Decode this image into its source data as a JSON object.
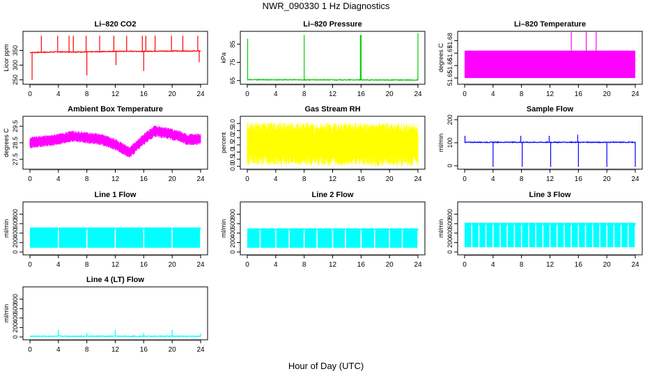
{
  "figure": {
    "title": "NWR_090330  1 Hz Diagnostics",
    "xlabel": "Hour of Day (UTC)"
  },
  "chart_data": [
    {
      "type": "line",
      "title": "Li–820 CO2",
      "xlabel": "",
      "ylabel": "Licor ppm",
      "xlim": [
        0,
        24
      ],
      "xticks": [
        0,
        4,
        8,
        12,
        16,
        20,
        24
      ],
      "ylim": [
        235,
        415
      ],
      "yticks": [
        250,
        300,
        350
      ],
      "ytick_labels": [
        "250",
        "300",
        "350"
      ],
      "color": "#ff0000",
      "grid": false,
      "baseline": [
        [
          0,
          343
        ],
        [
          4,
          345
        ],
        [
          8,
          345
        ],
        [
          12,
          347
        ],
        [
          16,
          347
        ],
        [
          20,
          348
        ],
        [
          24,
          348
        ]
      ],
      "spikes": [
        [
          0.3,
          250
        ],
        [
          1.6,
          400
        ],
        [
          3.9,
          400
        ],
        [
          5.5,
          400
        ],
        [
          6.1,
          400
        ],
        [
          7.9,
          400
        ],
        [
          8.0,
          265
        ],
        [
          9.8,
          400
        ],
        [
          11.8,
          400
        ],
        [
          12.1,
          300
        ],
        [
          13.6,
          400
        ],
        [
          15.8,
          400
        ],
        [
          16.0,
          280
        ],
        [
          16.3,
          400
        ],
        [
          17.6,
          400
        ],
        [
          19.9,
          400
        ],
        [
          21.5,
          400
        ],
        [
          23.6,
          400
        ],
        [
          23.8,
          310
        ]
      ]
    },
    {
      "type": "line",
      "title": "Li–820 Pressure",
      "xlabel": "",
      "ylabel": "kPa",
      "xlim": [
        0,
        24
      ],
      "xticks": [
        0,
        4,
        8,
        12,
        16,
        20,
        24
      ],
      "ylim": [
        63,
        92
      ],
      "yticks": [
        65,
        75,
        85
      ],
      "ytick_labels": [
        "65",
        "75",
        "85"
      ],
      "color": "#00cc00",
      "grid": false,
      "baseline": [
        [
          0,
          65.5
        ],
        [
          24,
          65.3
        ]
      ],
      "spikes": [
        [
          0.05,
          88
        ],
        [
          8.0,
          90
        ],
        [
          15.9,
          90
        ],
        [
          16.0,
          90
        ],
        [
          24.0,
          91
        ]
      ]
    },
    {
      "type": "line",
      "title": "Li–820 Temperature",
      "xlabel": "",
      "ylabel": "degrees C",
      "xlim": [
        0,
        24
      ],
      "xticks": [
        0,
        4,
        8,
        12,
        16,
        20,
        24
      ],
      "ylim": [
        51.645,
        51.6875
      ],
      "yticks": [
        51.65,
        51.66,
        51.67,
        51.68
      ],
      "ytick_labels": [
        "51.65",
        "51.66",
        "51.67",
        "51.68"
      ],
      "color": "#ff00ff",
      "grid": false,
      "band": [
        51.65,
        51.672
      ],
      "spikes": [
        [
          15.0,
          51.69
        ],
        [
          17.1,
          51.69
        ],
        [
          18.5,
          51.69
        ]
      ]
    },
    {
      "type": "line",
      "title": "Ambient Box Temperature",
      "xlabel": "",
      "ylabel": "degrees C",
      "xlim": [
        0,
        24
      ],
      "xticks": [
        0,
        4,
        8,
        12,
        16,
        20,
        24
      ],
      "ylim": [
        26.9,
        30.1
      ],
      "yticks": [
        27.5,
        28.5,
        29.5
      ],
      "ytick_labels": [
        "27.5",
        "28.5",
        "29.5"
      ],
      "color": "#ff00ff",
      "grid": false,
      "center": [
        [
          0,
          28.5
        ],
        [
          2,
          28.6
        ],
        [
          4,
          28.7
        ],
        [
          6,
          28.9
        ],
        [
          8,
          28.8
        ],
        [
          10,
          28.7
        ],
        [
          12,
          28.4
        ],
        [
          14,
          27.9
        ],
        [
          16,
          28.7
        ],
        [
          17.5,
          29.2
        ],
        [
          19,
          29.1
        ],
        [
          21,
          28.9
        ],
        [
          22,
          28.7
        ],
        [
          24,
          28.7
        ]
      ],
      "halfwidth": 0.35
    },
    {
      "type": "line",
      "title": "Gas Stream RH",
      "xlabel": "",
      "ylabel": "percent",
      "xlim": [
        0,
        24
      ],
      "xticks": [
        0,
        4,
        8,
        12,
        16,
        20,
        24
      ],
      "ylim": [
        -0.2,
        3.5
      ],
      "yticks": [
        0.0,
        0.5,
        1.0,
        1.5,
        2.0,
        2.5,
        3.0
      ],
      "ytick_labels": [
        "0.0",
        "0.5",
        "1.0",
        "1.5",
        "2.0",
        "2.5",
        "3.0"
      ],
      "color": "#ffff00",
      "grid": false,
      "center": [
        [
          0,
          1.6
        ],
        [
          24,
          1.5
        ]
      ],
      "halfwidth": 1.5
    },
    {
      "type": "line",
      "title": "Sample Flow",
      "xlabel": "",
      "ylabel": "ml/min",
      "xlim": [
        0,
        24
      ],
      "xticks": [
        0,
        4,
        8,
        12,
        16,
        20,
        24
      ],
      "ylim": [
        -15,
        215
      ],
      "yticks": [
        0,
        100,
        200
      ],
      "ytick_labels": [
        "0",
        "100",
        "200"
      ],
      "color": "#0000ff",
      "grid": false,
      "baseline": [
        [
          0,
          102
        ],
        [
          24,
          102
        ]
      ],
      "spikes": [
        [
          0.05,
          130
        ],
        [
          4.0,
          -5
        ],
        [
          7.9,
          130
        ],
        [
          8.1,
          -5
        ],
        [
          11.9,
          130
        ],
        [
          12.1,
          -5
        ],
        [
          15.9,
          135
        ],
        [
          16.0,
          -5
        ],
        [
          19.9,
          100
        ],
        [
          20.0,
          -5
        ],
        [
          24.0,
          -5
        ]
      ]
    },
    {
      "type": "area",
      "title": "Line 1 Flow",
      "xlabel": "",
      "ylabel": "ml/min",
      "xlim": [
        0,
        24
      ],
      "xticks": [
        0,
        4,
        8,
        12,
        16,
        20,
        24
      ],
      "ylim": [
        -60,
        1060
      ],
      "yticks": [
        0,
        200,
        400,
        600,
        800
      ],
      "ytick_labels": [
        "0",
        "200",
        "400",
        "600",
        "800"
      ],
      "color": "#00ffff",
      "grid": false,
      "band": [
        90,
        520
      ],
      "gaps": [
        4.0,
        8.0,
        12.0,
        16.0,
        20.0,
        24.0
      ]
    },
    {
      "type": "area",
      "title": "Line 2 Flow",
      "xlabel": "",
      "ylabel": "ml/min",
      "xlim": [
        0,
        24
      ],
      "xticks": [
        0,
        4,
        8,
        12,
        16,
        20,
        24
      ],
      "ylim": [
        -60,
        1060
      ],
      "yticks": [
        0,
        200,
        400,
        600,
        800
      ],
      "ytick_labels": [
        "0",
        "200",
        "400",
        "600",
        "800"
      ],
      "color": "#00ffff",
      "grid": false,
      "band": [
        90,
        500
      ],
      "gaps": [
        1.8,
        4.0,
        5.9,
        8.0,
        9.8,
        12.0,
        13.8,
        16.0,
        17.9,
        20.0,
        21.8,
        24.0
      ]
    },
    {
      "type": "area",
      "title": "Line 3 Flow",
      "xlabel": "",
      "ylabel": "ml/min",
      "xlim": [
        0,
        24
      ],
      "xticks": [
        0,
        4,
        8,
        12,
        16,
        20,
        24
      ],
      "ylim": [
        -60,
        1060
      ],
      "yticks": [
        0,
        200,
        400,
        600,
        800
      ],
      "ytick_labels": [
        "0",
        "200",
        "400",
        "600",
        "800"
      ],
      "color": "#00ffff",
      "grid": false,
      "band": [
        100,
        620
      ],
      "gaps": [
        1.0,
        2.0,
        3.0,
        4.0,
        5.0,
        6.0,
        7.0,
        8.0,
        9.0,
        10.0,
        11.0,
        12.0,
        13.0,
        14.0,
        15.0,
        16.0,
        17.0,
        18.0,
        19.0,
        20.0,
        21.0,
        22.0,
        23.0,
        24.0
      ]
    },
    {
      "type": "line",
      "title": "Line 4 (LT) Flow",
      "xlabel": "",
      "ylabel": "ml/min",
      "xlim": [
        0,
        24
      ],
      "xticks": [
        0,
        4,
        8,
        12,
        16,
        20,
        24
      ],
      "ylim": [
        -60,
        1060
      ],
      "yticks": [
        0,
        200,
        400,
        600,
        800
      ],
      "ytick_labels": [
        "0",
        "200",
        "400",
        "600",
        "800"
      ],
      "color": "#00ffff",
      "grid": false,
      "baseline": [
        [
          0,
          15
        ],
        [
          24,
          15
        ]
      ],
      "spikes": [
        [
          4.0,
          150
        ],
        [
          8.0,
          80
        ],
        [
          12.0,
          150
        ],
        [
          16.0,
          80
        ],
        [
          20.0,
          150
        ],
        [
          24.0,
          70
        ]
      ]
    }
  ]
}
